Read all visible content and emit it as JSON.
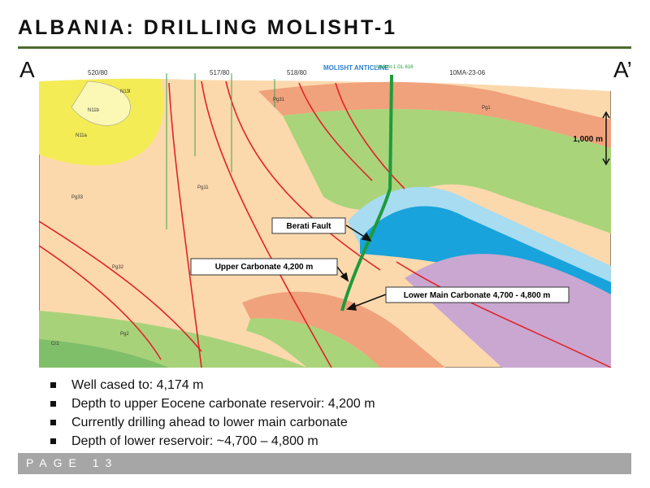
{
  "header": {
    "title": "ALBANIA: DRILLING MOLISHT-1"
  },
  "section": {
    "left_label": "A",
    "right_label": "A’",
    "labels": [
      "520/80",
      "517/80",
      "518/80",
      "MOLISHT ANTICLINE",
      "Molisht-1 GL 616",
      "10MA-23-06",
      "N13l",
      "N11b",
      "N11a",
      "Pg33",
      "Pg11",
      "Pg32",
      "Pg31",
      "Pg2",
      "Pg1",
      "Cr2"
    ],
    "scale": "1,000 m",
    "callouts": [
      "Berati Fault",
      "Upper Carbonate 4,200 m",
      "Lower Main Carbonate 4,700 - 4,800 m"
    ]
  },
  "bullets": [
    "Well cased to: 4,174 m",
    "Depth to upper Eocene carbonate reservoir: 4,200 m",
    "Currently drilling ahead to lower main carbonate",
    "Depth of lower reservoir: ~4,700 – 4,800 m"
  ],
  "footer": {
    "page": "PAGE 13"
  }
}
